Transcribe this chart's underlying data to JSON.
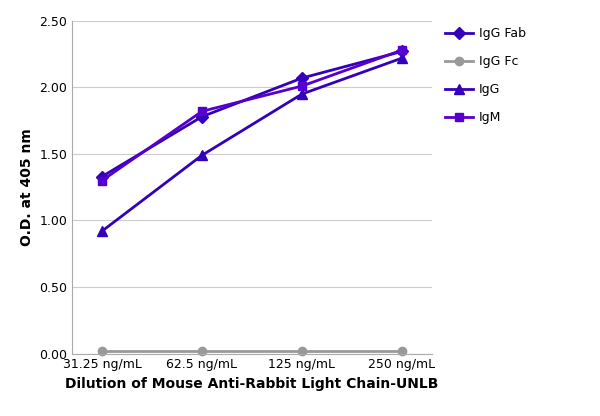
{
  "x_labels": [
    "31.25 ng/mL",
    "62.5 ng/mL",
    "125 ng/mL",
    "250 ng/mL"
  ],
  "x_positions": [
    0,
    1,
    2,
    3
  ],
  "series": [
    {
      "label": "IgG Fab",
      "color": "#3300BB",
      "marker": "D",
      "markersize": 6,
      "values": [
        1.33,
        1.78,
        2.07,
        2.27
      ]
    },
    {
      "label": "IgG Fc",
      "color": "#999999",
      "marker": "o",
      "markersize": 6,
      "values": [
        0.02,
        0.02,
        0.02,
        0.02
      ]
    },
    {
      "label": "IgG",
      "color": "#3300BB",
      "marker": "^",
      "markersize": 7,
      "values": [
        0.92,
        1.49,
        1.95,
        2.22
      ]
    },
    {
      "label": "IgM",
      "color": "#5500CC",
      "marker": "s",
      "markersize": 6,
      "values": [
        1.3,
        1.82,
        2.01,
        2.28
      ]
    }
  ],
  "xlabel": "Dilution of Mouse Anti-Rabbit Light Chain-UNLB",
  "ylabel": "O.D. at 405 nm",
  "ylim": [
    0.0,
    2.5
  ],
  "yticks": [
    0.0,
    0.5,
    1.0,
    1.5,
    2.0,
    2.5
  ],
  "grid_color": "#cccccc",
  "background_color": "#ffffff",
  "axis_label_fontsize": 10,
  "tick_fontsize": 9,
  "legend_fontsize": 9,
  "linewidth": 2.0
}
